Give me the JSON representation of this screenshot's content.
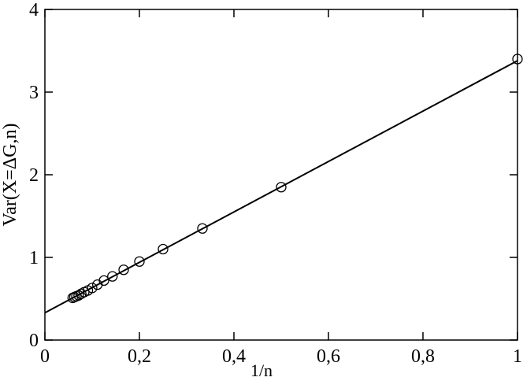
{
  "chart_data": {
    "type": "scatter",
    "xlabel": "1/n",
    "ylabel": "Var(X=ΔG,n)",
    "xlim": [
      0,
      1
    ],
    "ylim": [
      0,
      4
    ],
    "xticks": [
      0,
      {
        "value": 0.2,
        "label": "0,2"
      },
      {
        "value": 0.4,
        "label": "0,4"
      },
      {
        "value": 0.6,
        "label": "0,6"
      },
      {
        "value": 0.8,
        "label": "0,8"
      },
      1
    ],
    "yticks": [
      0,
      1,
      2,
      3,
      4
    ],
    "series": [
      {
        "mode": "markers",
        "color": "#000000",
        "x": [
          1,
          0.5,
          0.3333,
          0.25,
          0.2,
          0.1667,
          0.1429,
          0.125,
          0.1111,
          0.1,
          0.0909,
          0.0833,
          0.0769,
          0.0714,
          0.0667,
          0.0625,
          0.0588
        ],
        "values": [
          3.4,
          1.85,
          1.35,
          1.1,
          0.95,
          0.85,
          0.77,
          0.72,
          0.67,
          0.63,
          0.6,
          0.58,
          0.56,
          0.54,
          0.53,
          0.52,
          0.51
        ]
      },
      {
        "mode": "lines",
        "color": "#000000",
        "x": [
          0,
          1
        ],
        "values": [
          0.33,
          3.38
        ]
      }
    ]
  }
}
